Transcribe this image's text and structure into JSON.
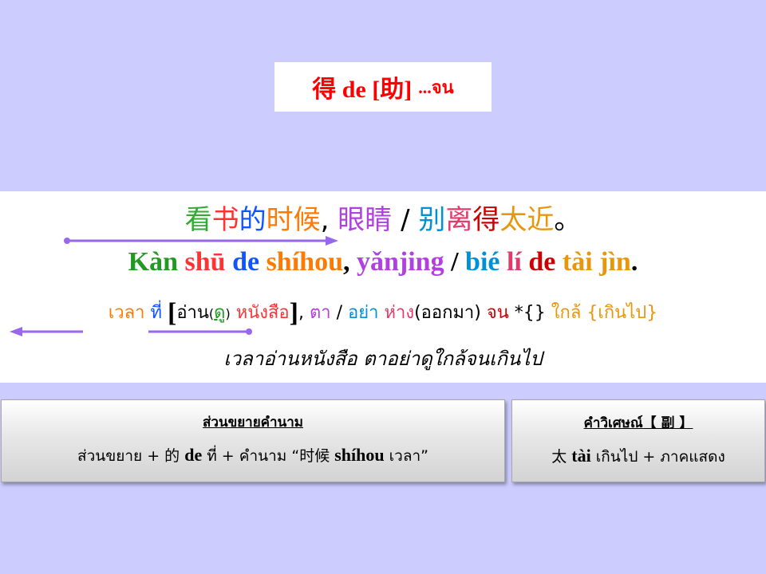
{
  "title": {
    "main": "得 de [助]",
    "suffix": "...จน"
  },
  "hanzi": [
    {
      "t": "看",
      "c": "#33aa33"
    },
    {
      "t": "书",
      "c": "#ff3333"
    },
    {
      "t": "的",
      "c": "#1155ff"
    },
    {
      "t": "时",
      "c": "#ff7a00"
    },
    {
      "t": "候",
      "c": "#ff7a00"
    },
    {
      "t": ", ",
      "c": "#000000"
    },
    {
      "t": "眼",
      "c": "#b040e0"
    },
    {
      "t": "睛",
      "c": "#b040e0"
    },
    {
      "t": " / ",
      "c": "#000000"
    },
    {
      "t": "别",
      "c": "#0090d8"
    },
    {
      "t": "离",
      "c": "#e23a6a"
    },
    {
      "t": "得",
      "c": "#cc0000"
    },
    {
      "t": "太",
      "c": "#e8960c"
    },
    {
      "t": "近",
      "c": "#e8960c"
    },
    {
      "t": "。",
      "c": "#000000"
    }
  ],
  "pinyin": [
    {
      "t": "Kàn ",
      "c": "#229922"
    },
    {
      "t": "shū ",
      "c": "#ff3333"
    },
    {
      "t": "de ",
      "c": "#1155ff"
    },
    {
      "t": "shíhou",
      "c": "#ff7a00"
    },
    {
      "t": ", ",
      "c": "#000000"
    },
    {
      "t": "yǎnjing",
      "c": "#b040e0"
    },
    {
      "t": " / ",
      "c": "#000000"
    },
    {
      "t": "bié ",
      "c": "#0090d8"
    },
    {
      "t": "lí ",
      "c": "#e23a6a"
    },
    {
      "t": "de ",
      "c": "#cc0000"
    },
    {
      "t": "tài jìn",
      "c": "#e8960c"
    },
    {
      "t": ".",
      "c": "#000000"
    }
  ],
  "thai": [
    {
      "t": "เวลา ",
      "c": "#ff7a00"
    },
    {
      "t": "ที่ ",
      "c": "#1155ff"
    },
    {
      "t": "[",
      "c": "#000000",
      "k": "br"
    },
    {
      "t": "อ่าน",
      "c": "#000000"
    },
    {
      "t": "(",
      "c": "#000000",
      "k": "par"
    },
    {
      "t": "ดู",
      "c": "#229922",
      "k": "ul"
    },
    {
      "t": ")",
      "c": "#000000",
      "k": "par"
    },
    {
      "t": " หนังสือ",
      "c": "#ff3333"
    },
    {
      "t": "]",
      "c": "#000000",
      "k": "br"
    },
    {
      "t": ", ",
      "c": "#000000"
    },
    {
      "t": "ตา ",
      "c": "#b040e0"
    },
    {
      "t": "/ ",
      "c": "#000000"
    },
    {
      "t": "อย่า ",
      "c": "#0090d8"
    },
    {
      "t": "ห่าง",
      "c": "#e23a6a"
    },
    {
      "t": "(ออกมา) ",
      "c": "#000000"
    },
    {
      "t": "จน",
      "c": "#cc0000"
    },
    {
      "t": " *{} ",
      "c": "#000000"
    },
    {
      "t": "ใกล้ ",
      "c": "#e8960c"
    },
    {
      "t": "{เกินไป}",
      "c": "#e8960c"
    }
  ],
  "meaning": "เวลาอ่านหนังสือ ตาอย่าดูใกล้จนเกินไป",
  "info_left": {
    "title": "ส่วนขยายคำนาม",
    "body_pre": "ส่วนขยาย + 的 ",
    "body_py1": "de",
    "body_mid": " ที่ + คำนาม “时候 ",
    "body_py2": "shíhou",
    "body_post": " เวลา”"
  },
  "info_right": {
    "title": "คำวิเศษณ์【 副 】",
    "body_pre": "太 ",
    "body_py": "tài",
    "body_post": " เกินไป + ภาคแสดง"
  },
  "colors": {
    "background": "#ccccff",
    "arrow": "#9966ee",
    "title": "#ff0000"
  }
}
